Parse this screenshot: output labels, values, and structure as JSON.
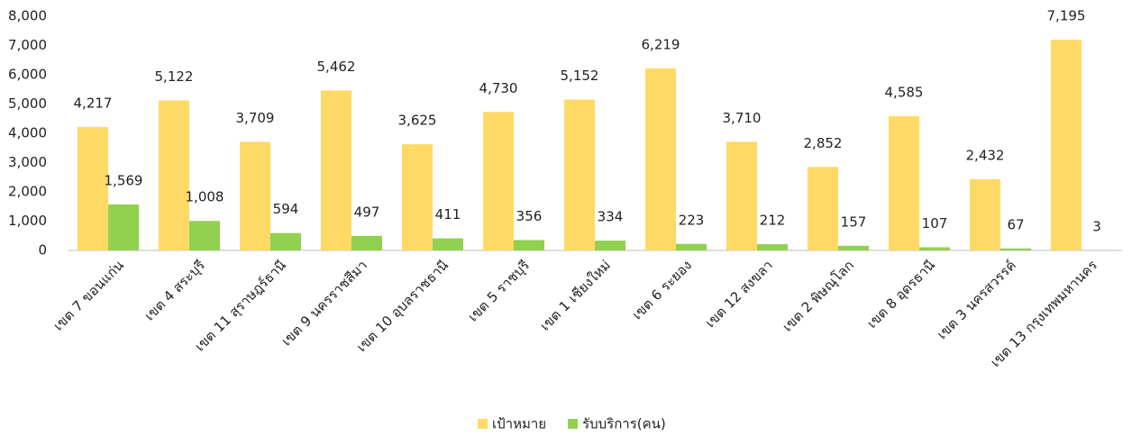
{
  "chart_data": {
    "type": "bar",
    "categories": [
      "เขต 7 ขอนแก่น",
      "เขต 4 สระบุรี",
      "เขต 11 สุราษฎร์ธานี",
      "เขต 9 นครราชสีมา",
      "เขต 10 อุบลราชธานี",
      "เขต 5 ราชบุรี",
      "เขต 1 เชียงใหม่",
      "เขต 6 ระยอง",
      "เขต 12 สงขลา",
      "เขต 2 พิษณุโลก",
      "เขต 8 อุดรธานี",
      "เขต 3 นครสวรรค์",
      "เขต 13 กรุงเทพมหานคร"
    ],
    "series": [
      {
        "name": "เป้าหมาย",
        "color": "#ffd966",
        "values": [
          4217,
          5122,
          3709,
          5462,
          3625,
          4730,
          5152,
          6219,
          3710,
          2852,
          4585,
          2432,
          7195
        ],
        "value_labels": [
          "4,217",
          "5,122",
          "3,709",
          "5,462",
          "3,625",
          "4,730",
          "5,152",
          "6,219",
          "3,710",
          "2,852",
          "4,585",
          "2,432",
          "7,195"
        ]
      },
      {
        "name": "รับบริการ(คน)",
        "color": "#92d050",
        "values": [
          1569,
          1008,
          594,
          497,
          411,
          356,
          334,
          223,
          212,
          157,
          107,
          67,
          3
        ],
        "value_labels": [
          "1,569",
          "1,008",
          "594",
          "497",
          "411",
          "356",
          "334",
          "223",
          "212",
          "157",
          "107",
          "67",
          "3"
        ]
      }
    ],
    "ylim": [
      0,
      8000
    ],
    "yticks": [
      0,
      {
        "value": 1000,
        "label": "1,000"
      },
      {
        "value": 2000,
        "label": "2,000"
      },
      {
        "value": 3000,
        "label": "3,000"
      },
      {
        "value": 4000,
        "label": "4,000"
      },
      {
        "value": 5000,
        "label": "5,000"
      },
      {
        "value": 6000,
        "label": "6,000"
      },
      {
        "value": 7000,
        "label": "7,000"
      },
      {
        "value": 8000,
        "label": "8,000"
      }
    ],
    "grid": false,
    "legend": "bottom"
  }
}
